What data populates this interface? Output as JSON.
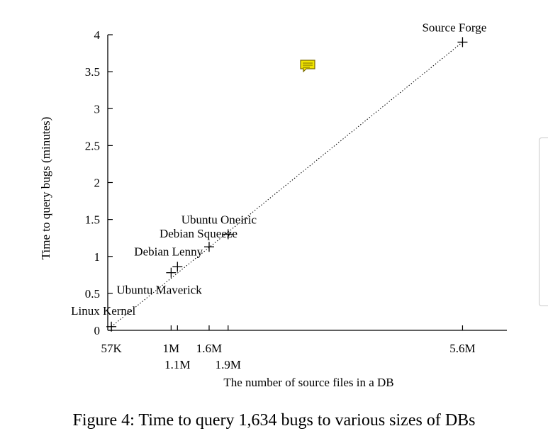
{
  "chart_data": {
    "type": "scatter",
    "xlabel": "The number of source files in a DB",
    "ylabel": "Time to query bugs (minutes)",
    "xlim": [
      0,
      6300
    ],
    "ylim": [
      0,
      4
    ],
    "x_units": "thousands of source files",
    "xticks": [
      {
        "value": 57,
        "label": "57K",
        "row": 0
      },
      {
        "value": 1000,
        "label": "1M",
        "row": 0
      },
      {
        "value": 1100,
        "label": "1.1M",
        "row": 1
      },
      {
        "value": 1600,
        "label": "1.6M",
        "row": 0
      },
      {
        "value": 1900,
        "label": "1.9M",
        "row": 1
      },
      {
        "value": 5600,
        "label": "5.6M",
        "row": 0
      }
    ],
    "yticks": [
      0,
      0.5,
      1,
      1.5,
      2,
      2.5,
      3,
      3.5,
      4
    ],
    "ytick_labels": [
      "0",
      "0.5",
      "1",
      "1.5",
      "2",
      "2.5",
      "3",
      "3.5",
      "4"
    ],
    "points": [
      {
        "name": "Linux Kernel",
        "x": 57,
        "y": 0.05
      },
      {
        "name": "Ubuntu Maverick",
        "x": 1000,
        "y": 0.78
      },
      {
        "name": "Debian Lenny",
        "x": 1100,
        "y": 0.86
      },
      {
        "name": "Debian Squeeze",
        "x": 1600,
        "y": 1.13
      },
      {
        "name": "Ubuntu Oneiric",
        "x": 1900,
        "y": 1.3
      },
      {
        "name": "Source Forge",
        "x": 5600,
        "y": 3.9
      }
    ],
    "trend_line": {
      "from": [
        57,
        0.05
      ],
      "to": [
        5600,
        3.9
      ],
      "style": "dotted"
    },
    "grid": false,
    "legend": "none"
  },
  "caption": "Figure 4: Time to query 1,634 bugs to various sizes of DBs",
  "colors": {
    "comment_icon_fill": "#f2e600",
    "comment_icon_stroke": "#7a6a00",
    "axis": "#000000",
    "panel_border": "#c8c8c8"
  },
  "icons": {
    "comment": "comment-icon"
  }
}
